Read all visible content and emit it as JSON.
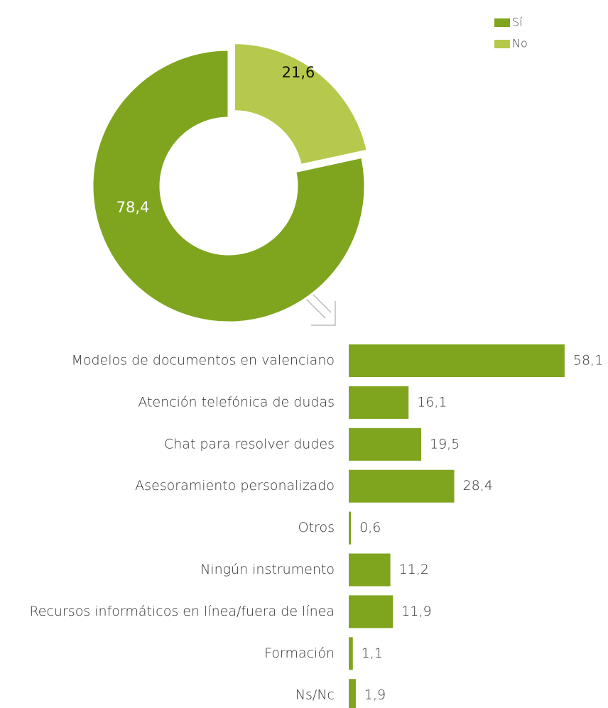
{
  "chart_data": [
    {
      "type": "donut",
      "categories": [
        "Sí",
        "No"
      ],
      "values": [
        78.4,
        21.6
      ],
      "value_labels": [
        "78,4",
        "21,6"
      ],
      "colors": [
        "#7fa51e",
        "#b6c94c"
      ],
      "legend": "top-right"
    },
    {
      "type": "hbar",
      "categories": [
        "Modelos de documentos en valenciano",
        "Atención telefónica de dudas",
        "Chat para resolver dudes",
        "Asesoramiento personalizado",
        "Otros",
        "Ningún instrumento",
        "Recursos informáticos en línea/fuera de línea",
        "Formación",
        "Ns/Nc"
      ],
      "values": [
        58.1,
        16.1,
        19.5,
        28.4,
        0.6,
        11.2,
        11.9,
        1.1,
        1.9
      ],
      "value_labels": [
        "58,1",
        "16,1",
        "19,5",
        "28,4",
        "0,6",
        "11,2",
        "11,9",
        "1,1",
        "1,9"
      ],
      "color": "#7fa51e"
    }
  ]
}
